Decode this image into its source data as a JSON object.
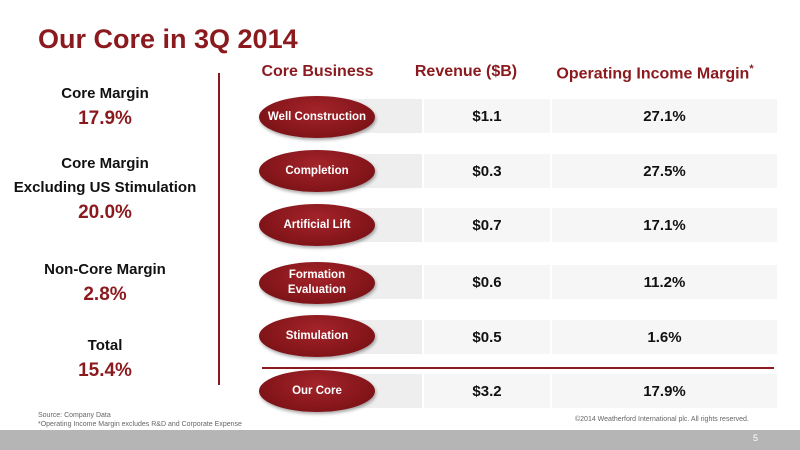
{
  "title": "Our Core in 3Q 2014",
  "metrics": [
    {
      "label": "Core Margin",
      "value": "17.9%"
    },
    {
      "label": "Core Margin",
      "label2": "Excluding US Stimulation",
      "value": "20.0%"
    },
    {
      "label": "Non-Core Margin",
      "value": "2.8%"
    },
    {
      "label": "Total",
      "value": "15.4%"
    }
  ],
  "table": {
    "headers": {
      "business": "Core Business",
      "revenue": "Revenue ($B)",
      "margin": "Operating Income Margin",
      "margin_mark": "*"
    },
    "rows": [
      {
        "business": "Well Construction",
        "revenue": "$1.1",
        "margin": "27.1%"
      },
      {
        "business": "Completion",
        "revenue": "$0.3",
        "margin": "27.5%"
      },
      {
        "business": "Artificial Lift",
        "revenue": "$0.7",
        "margin": "17.1%"
      },
      {
        "business": "Formation Evaluation",
        "revenue": "$0.6",
        "margin": "11.2%"
      },
      {
        "business": "Stimulation",
        "revenue": "$0.5",
        "margin": "1.6%"
      }
    ],
    "total": {
      "business": "Our Core",
      "revenue": "$3.2",
      "margin": "17.9%"
    }
  },
  "footnotes": {
    "source": "Source: Company Data",
    "note": "*Operating Income Margin excludes R&D and Corporate Expense"
  },
  "copyright": "©2014 Weatherford International plc.  All rights reserved.",
  "page_number": "5",
  "colors": {
    "accent": "#8b1a1e",
    "footer": "#b5b5b5"
  }
}
